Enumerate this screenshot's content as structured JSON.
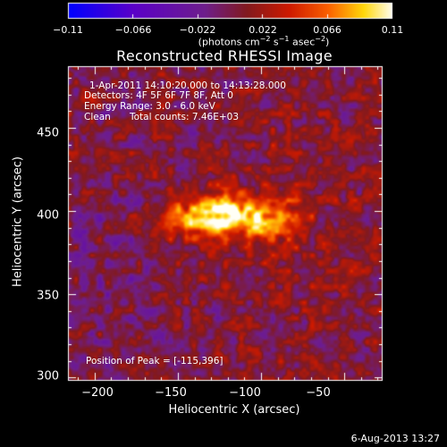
{
  "chart_data": {
    "type": "heatmap",
    "title": "Reconstructed RHESSI Image",
    "xlabel": "Heliocentric X (arcsec)",
    "ylabel": "Heliocentric Y (arcsec)",
    "xlim": [
      -216,
      -27
    ],
    "ylim": [
      298,
      487
    ],
    "x_ticks": [
      -200,
      -150,
      -100,
      -50
    ],
    "x_tick_labels": [
      "−200",
      "−150",
      "−100",
      "−50"
    ],
    "y_ticks": [
      300,
      350,
      400,
      450
    ],
    "y_tick_labels": [
      "300",
      "350",
      "400",
      "450"
    ],
    "colorbar": {
      "range": [
        -0.11,
        0.11
      ],
      "tick_values": [
        -0.11,
        -0.066,
        -0.022,
        0.022,
        0.066,
        0.11
      ],
      "tick_labels": [
        "−0.11",
        "−0.066",
        "−0.022",
        "0.022",
        "0.066",
        "0.11"
      ],
      "unit_parts": [
        "(photons cm",
        "−2",
        " s",
        "−1",
        " asec",
        "−2",
        ")"
      ],
      "colormap": "blue-purple-red-yellow-white"
    },
    "annotations": {
      "time_range": "1-Apr-2011 14:10:20.000 to 14:13:28.000",
      "detectors": "Detectors: 4F 5F 6F 7F 8F, Att 0",
      "energy": "Energy Range: 3.0 - 6.0 keV",
      "method": "Clean",
      "total_counts": "Total counts: 7.46E+03",
      "peak": "Position of Peak = [-115,396]"
    },
    "peak": {
      "x": -115,
      "y": 396,
      "value": 0.11
    },
    "sources": [
      {
        "x": -122,
        "y": 397,
        "sx": 20,
        "sy": 9,
        "amp": 0.105
      },
      {
        "x": -150,
        "y": 393,
        "sx": 10,
        "sy": 6,
        "amp": 0.04
      },
      {
        "x": -90,
        "y": 396,
        "sx": 10,
        "sy": 8,
        "amp": 0.03
      }
    ],
    "background_level": 0.004,
    "grid": false
  },
  "footer": {
    "date": "6-Aug-2013 13:27"
  }
}
